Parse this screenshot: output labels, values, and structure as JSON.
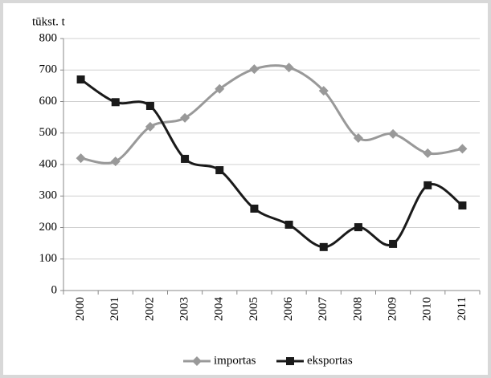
{
  "chart_data": {
    "type": "line",
    "y_label": "tūkst. t",
    "categories": [
      "2000",
      "2001",
      "2002",
      "2003",
      "2004",
      "2005",
      "2006",
      "2007",
      "2008",
      "2009",
      "2010",
      "2011"
    ],
    "series": [
      {
        "name": "importas",
        "color": "#999999",
        "marker": "diamond",
        "values": [
          420,
          410,
          520,
          548,
          640,
          703,
          708,
          634,
          484,
          497,
          436,
          450
        ]
      },
      {
        "name": "eksportas",
        "color": "#1a1a1a",
        "marker": "square",
        "values": [
          670,
          598,
          586,
          418,
          382,
          260,
          209,
          138,
          201,
          148,
          334,
          270
        ]
      }
    ],
    "ylim": [
      0,
      800
    ],
    "yticks": [
      0,
      100,
      200,
      300,
      400,
      500,
      600,
      700,
      800
    ],
    "grid": true,
    "legend": "bottom"
  }
}
